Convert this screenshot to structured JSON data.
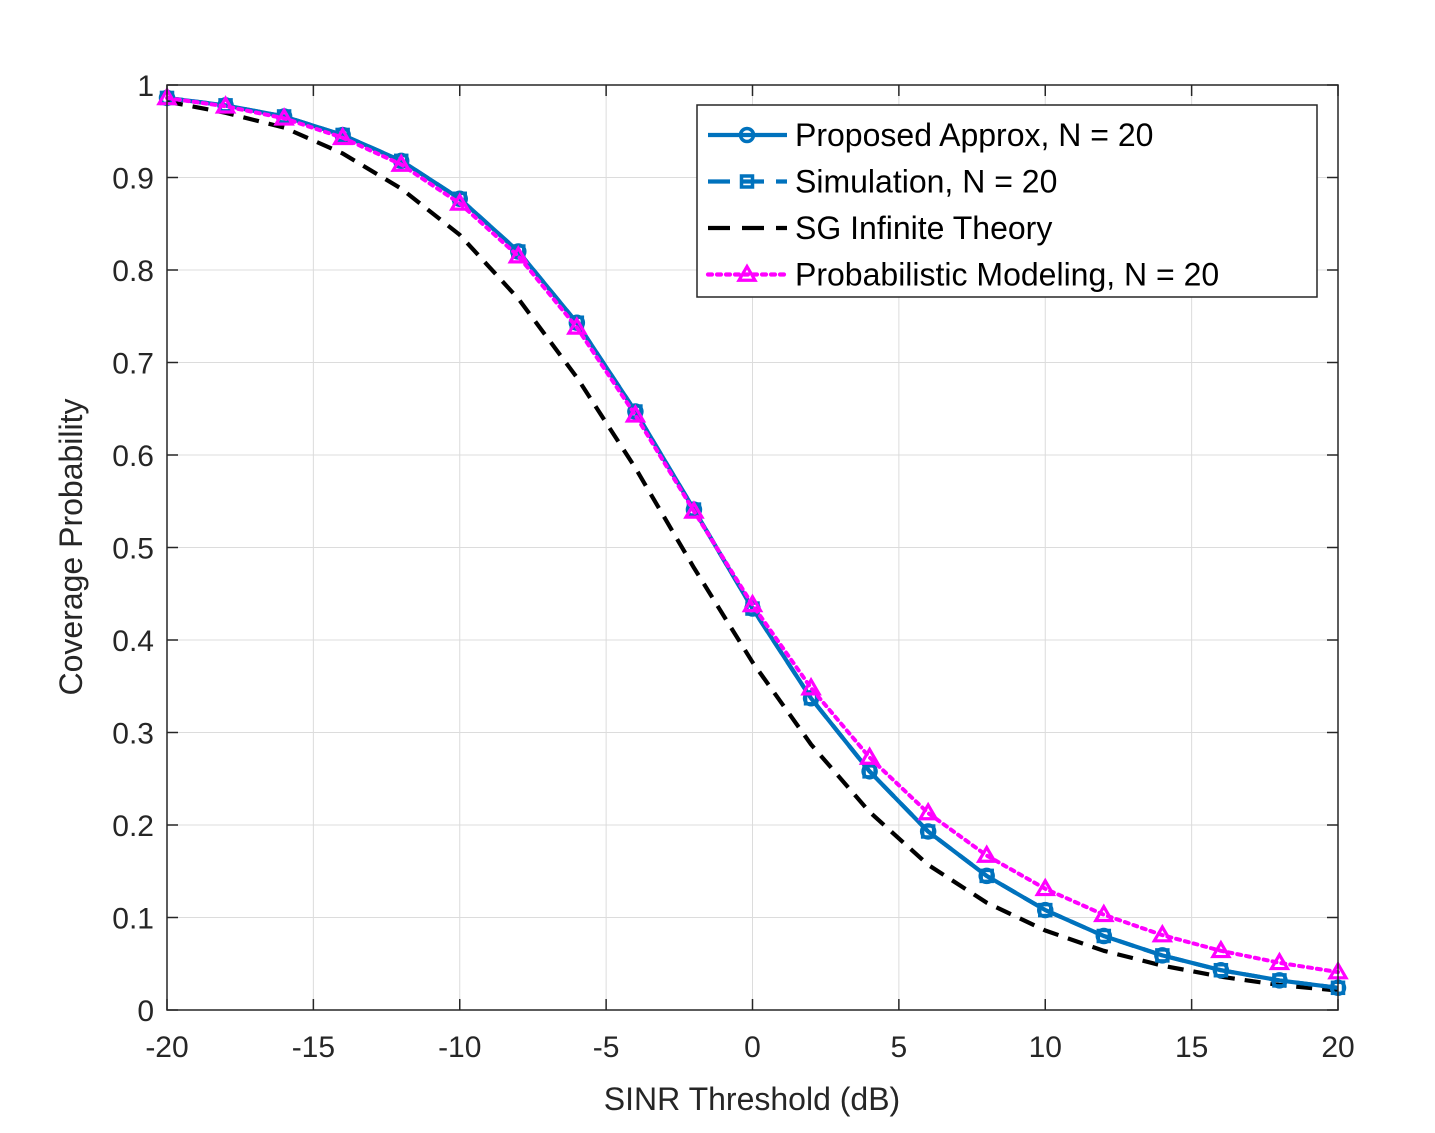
{
  "chart_data": {
    "type": "line",
    "title": "",
    "xlabel": "SINR Threshold (dB)",
    "ylabel": "Coverage Probability",
    "xlim": [
      -20,
      20
    ],
    "ylim": [
      0,
      1
    ],
    "xticks": [
      -20,
      -15,
      -10,
      -5,
      0,
      5,
      10,
      15,
      20
    ],
    "xtick_labels": [
      "-20",
      "-15",
      "-10",
      "-5",
      "0",
      "5",
      "10",
      "15",
      "20"
    ],
    "yticks": [
      0,
      0.1,
      0.2,
      0.3,
      0.4,
      0.5,
      0.6,
      0.7,
      0.8,
      0.9,
      1
    ],
    "ytick_labels": [
      "0",
      "0.1",
      "0.2",
      "0.3",
      "0.4",
      "0.5",
      "0.6",
      "0.7",
      "0.8",
      "0.9",
      "1"
    ],
    "grid": true,
    "legend_position": "top-right",
    "x": [
      -20,
      -18,
      -16,
      -14,
      -12,
      -10,
      -8,
      -6,
      -4,
      -2,
      0,
      2,
      4,
      6,
      8,
      10,
      12,
      14,
      16,
      18,
      20
    ],
    "series": [
      {
        "name": "Proposed Approx, N = 20",
        "color": "#0072bd",
        "line": "solid",
        "marker": "circle",
        "values": [
          0.986,
          0.978,
          0.966,
          0.946,
          0.918,
          0.877,
          0.82,
          0.743,
          0.647,
          0.541,
          0.434,
          0.337,
          0.258,
          0.193,
          0.145,
          0.108,
          0.08,
          0.059,
          0.043,
          0.032,
          0.024
        ]
      },
      {
        "name": "Simulation, N = 20",
        "color": "#0072bd",
        "line": "dashed",
        "marker": "square",
        "values": [
          0.986,
          0.978,
          0.966,
          0.946,
          0.918,
          0.877,
          0.82,
          0.743,
          0.647,
          0.541,
          0.434,
          0.337,
          0.258,
          0.193,
          0.145,
          0.108,
          0.08,
          0.059,
          0.043,
          0.032,
          0.024
        ]
      },
      {
        "name": "SG Infinite Theory",
        "color": "#000000",
        "line": "dashed",
        "marker": "none",
        "values": [
          0.982,
          0.97,
          0.954,
          0.926,
          0.888,
          0.838,
          0.769,
          0.684,
          0.586,
          0.478,
          0.376,
          0.287,
          0.214,
          0.157,
          0.116,
          0.086,
          0.064,
          0.048,
          0.036,
          0.027,
          0.021
        ]
      },
      {
        "name": "Probabilistic Modeling, N = 20",
        "color": "#ff00ff",
        "line": "dotted",
        "marker": "triangle",
        "values": [
          0.986,
          0.977,
          0.964,
          0.943,
          0.914,
          0.872,
          0.815,
          0.738,
          0.643,
          0.539,
          0.438,
          0.348,
          0.273,
          0.213,
          0.167,
          0.131,
          0.103,
          0.081,
          0.064,
          0.051,
          0.041
        ]
      }
    ]
  }
}
